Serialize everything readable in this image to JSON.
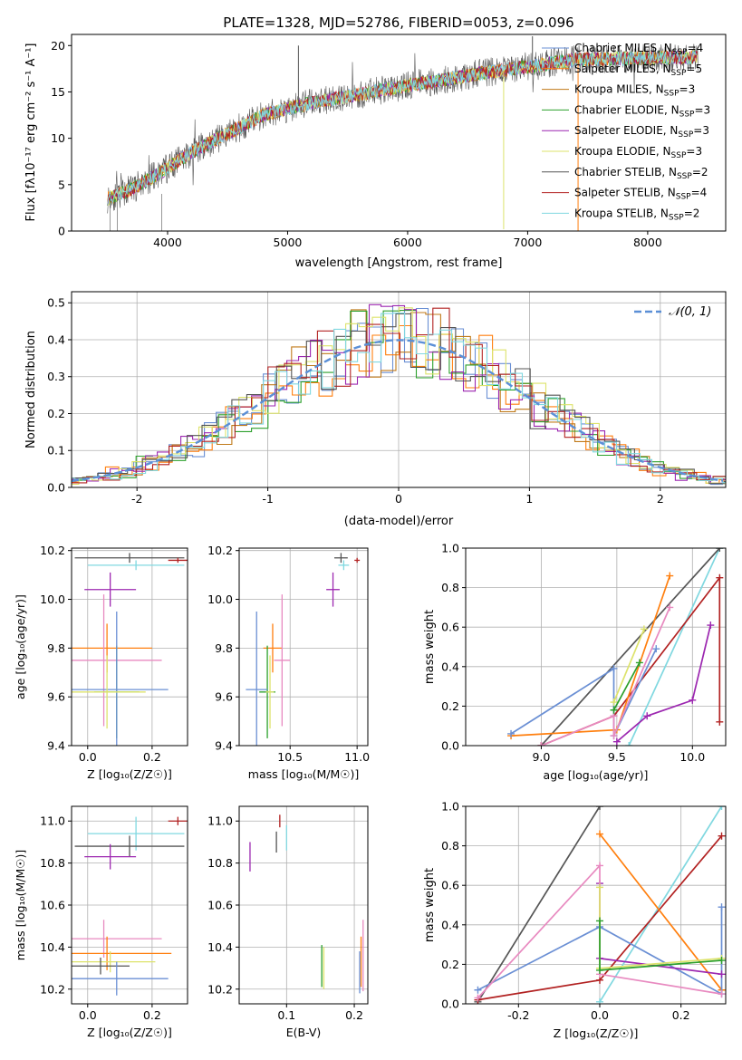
{
  "figure_title": "PLATE=1328, MJD=52786, FIBERID=0053, z=0.096",
  "colors": {
    "Chabrier MILES": "#6a8fd4",
    "Salpeter MILES": "#ff7f0e",
    "Kroupa MILES": "#c07a1a",
    "Chabrier ELODIE": "#2ca02c",
    "Salpeter ELODIE": "#9c27b0",
    "Kroupa ELODIE": "#dde36b",
    "Chabrier STELIB": "#555555",
    "Salpeter STELIB": "#b22222",
    "Kroupa STELIB": "#80d8e0",
    "normal": "#5b8fd6",
    "pink": "#e88ac0",
    "lime": "#b8e04a"
  },
  "chart_data": [
    {
      "id": "spectrum",
      "type": "line",
      "title": "PLATE=1328, MJD=52786, FIBERID=0053, z=0.096",
      "xlabel": "wavelength [Angstrom, rest frame]",
      "ylabel": "Flux [f_λ 10^-17 erg cm^-2 s^-1 A^-1]",
      "xlim": [
        3200,
        8650
      ],
      "ylim": [
        0,
        21.2
      ],
      "xticks": [
        4000,
        5000,
        6000,
        7000,
        8000
      ],
      "yticks": [
        0,
        5,
        10,
        15,
        20
      ],
      "legend": "upper right",
      "legend_entries": [
        "Chabrier MILES, N_SSP=4",
        "Salpeter MILES, N_SSP=5",
        "Kroupa MILES, N_SSP=3",
        "Chabrier ELODIE, N_SSP=3",
        "Salpeter ELODIE, N_SSP=3",
        "Kroupa ELODIE, N_SSP=3",
        "Chabrier STELIB, N_SSP=2",
        "Salpeter STELIB, N_SSP=4",
        "Kroupa STELIB, N_SSP=2"
      ],
      "continuum": [
        [
          3500,
          3.5
        ],
        [
          3700,
          4.5
        ],
        [
          3900,
          6.0
        ],
        [
          4000,
          6.8
        ],
        [
          4200,
          8.5
        ],
        [
          4500,
          10.5
        ],
        [
          4800,
          12.5
        ],
        [
          5000,
          13.2
        ],
        [
          5200,
          13.8
        ],
        [
          5500,
          14.5
        ],
        [
          5800,
          15.2
        ],
        [
          6000,
          15.7
        ],
        [
          6300,
          16.3
        ],
        [
          6600,
          17.0
        ],
        [
          7000,
          17.7
        ],
        [
          7400,
          18.5
        ],
        [
          7800,
          18.6
        ],
        [
          8200,
          18.7
        ],
        [
          8400,
          18.8
        ]
      ],
      "spikes": [
        {
          "x": 5090,
          "y": 20.0,
          "series": "Chabrier STELIB"
        },
        {
          "x": 7040,
          "y": 21.0,
          "series": "Chabrier STELIB"
        },
        {
          "x": 6800,
          "y": 0.2,
          "series": "Kroupa ELODIE"
        },
        {
          "x": 7420,
          "y": 0.0,
          "series": "Salpeter MILES"
        }
      ]
    },
    {
      "id": "residuals",
      "type": "line",
      "xlabel": "(data-model)/error",
      "ylabel": "Normed distribution",
      "xlim": [
        -2.5,
        2.5
      ],
      "ylim": [
        0,
        0.53
      ],
      "xticks": [
        -2,
        -1,
        0,
        1,
        2
      ],
      "yticks": [
        0.0,
        0.1,
        0.2,
        0.3,
        0.4,
        0.5
      ],
      "legend_entries": [
        "𝒩(0, 1)"
      ],
      "legend": "upper right"
    },
    {
      "id": "age_vs_Z",
      "type": "scatter",
      "xlabel": "Z [log10(Z/Z☉)]",
      "ylabel": "age [log10(age/yr)]",
      "xlim": [
        -0.05,
        0.31
      ],
      "ylim": [
        9.4,
        10.21
      ],
      "xticks": [
        0.0,
        0.2
      ],
      "yticks": [
        9.4,
        9.6,
        9.8,
        10.0,
        10.2
      ],
      "points": [
        {
          "series": "Chabrier STELIB",
          "x": 0.13,
          "xerr": 0.17,
          "y": 10.17,
          "yerr": 0.02
        },
        {
          "series": "Salpeter STELIB",
          "x": 0.28,
          "xerr": 0.03,
          "y": 10.16,
          "yerr": 0.01
        },
        {
          "series": "Kroupa STELIB",
          "x": 0.15,
          "xerr": 0.15,
          "y": 10.14,
          "yerr": 0.02
        },
        {
          "series": "Salpeter ELODIE",
          "x": 0.07,
          "xerr": 0.08,
          "y": 10.04,
          "yerr": 0.07
        },
        {
          "series": "Salpeter MILES",
          "x": 0.06,
          "xerr": 0.14,
          "y": 9.8,
          "yerr": 0.1
        },
        {
          "series": "pink",
          "x": 0.05,
          "xerr": 0.18,
          "y": 9.75,
          "yerr": 0.27
        },
        {
          "series": "Chabrier ELODIE",
          "x": 0.09,
          "xerr": 0.07,
          "y": 9.62,
          "yerr": 0.19
        },
        {
          "series": "Chabrier MILES",
          "x": 0.09,
          "xerr": 0.16,
          "y": 9.63,
          "yerr": 0.32
        },
        {
          "series": "Kroupa ELODIE",
          "x": 0.06,
          "xerr": 0.12,
          "y": 9.62,
          "yerr": 0.15
        }
      ]
    },
    {
      "id": "age_vs_mass",
      "type": "scatter",
      "xlabel": "mass [log10(M/M☉)]",
      "xlim": [
        10.12,
        11.08
      ],
      "ylim": [
        9.4,
        10.21
      ],
      "xticks": [
        10.5,
        11.0
      ],
      "yticks": [
        9.4,
        9.6,
        9.8,
        10.0,
        10.2
      ],
      "points": [
        {
          "series": "Chabrier STELIB",
          "x": 10.88,
          "xerr": 0.05,
          "y": 10.17,
          "yerr": 0.02
        },
        {
          "series": "Salpeter STELIB",
          "x": 11.0,
          "xerr": 0.02,
          "y": 10.16,
          "yerr": 0.01
        },
        {
          "series": "Kroupa STELIB",
          "x": 10.9,
          "xerr": 0.04,
          "y": 10.14,
          "yerr": 0.02
        },
        {
          "series": "Salpeter ELODIE",
          "x": 10.82,
          "xerr": 0.05,
          "y": 10.04,
          "yerr": 0.07
        },
        {
          "series": "Salpeter MILES",
          "x": 10.37,
          "xerr": 0.07,
          "y": 9.8,
          "yerr": 0.1
        },
        {
          "series": "pink",
          "x": 10.44,
          "xerr": 0.06,
          "y": 9.75,
          "yerr": 0.27
        },
        {
          "series": "Chabrier ELODIE",
          "x": 10.33,
          "xerr": 0.06,
          "y": 9.62,
          "yerr": 0.19
        },
        {
          "series": "Chabrier MILES",
          "x": 10.25,
          "xerr": 0.08,
          "y": 9.63,
          "yerr": 0.32
        },
        {
          "series": "Kroupa ELODIE",
          "x": 10.35,
          "xerr": 0.03,
          "y": 9.62,
          "yerr": 0.15
        }
      ]
    },
    {
      "id": "mass_weight_vs_age",
      "type": "line",
      "xlabel": "age [log10(age/yr)]",
      "ylabel": "mass weight",
      "xlim": [
        8.5,
        10.22
      ],
      "ylim": [
        0,
        1.0
      ],
      "xticks": [
        9.0,
        9.5,
        10.0
      ],
      "yticks": [
        0.0,
        0.2,
        0.4,
        0.6,
        0.8,
        1.0
      ],
      "series": [
        {
          "name": "Kroupa STELIB",
          "points": [
            [
              9.58,
              0.0
            ],
            [
              10.18,
              1.0
            ]
          ]
        },
        {
          "name": "Chabrier STELIB",
          "points": [
            [
              9.0,
              0.0
            ],
            [
              10.18,
              1.0
            ]
          ]
        },
        {
          "name": "Salpeter STELIB",
          "points": [
            [
              9.0,
              0.0
            ],
            [
              9.48,
              0.15
            ],
            [
              10.18,
              0.85
            ],
            [
              10.18,
              0.12
            ]
          ]
        },
        {
          "name": "Salpeter MILES",
          "points": [
            [
              8.8,
              0.05
            ],
            [
              9.5,
              0.08
            ],
            [
              9.85,
              0.86
            ]
          ]
        },
        {
          "name": "Chabrier MILES",
          "points": [
            [
              8.8,
              0.06
            ],
            [
              9.48,
              0.39
            ],
            [
              9.48,
              0.05
            ],
            [
              9.76,
              0.49
            ]
          ]
        },
        {
          "name": "Salpeter ELODIE",
          "points": [
            [
              9.5,
              0.02
            ],
            [
              9.7,
              0.15
            ],
            [
              10.0,
              0.23
            ],
            [
              10.12,
              0.61
            ]
          ]
        },
        {
          "name": "pink",
          "points": [
            [
              9.0,
              0.0
            ],
            [
              9.48,
              0.15
            ],
            [
              9.48,
              0.05
            ],
            [
              9.85,
              0.7
            ]
          ]
        },
        {
          "name": "Kroupa ELODIE",
          "points": [
            [
              9.48,
              0.22
            ],
            [
              9.68,
              0.59
            ]
          ]
        },
        {
          "name": "Chabrier ELODIE",
          "points": [
            [
              9.48,
              0.18
            ],
            [
              9.65,
              0.42
            ]
          ]
        }
      ]
    },
    {
      "id": "mass_vs_Z",
      "type": "scatter",
      "xlabel": "Z [log10(Z/Z☉)]",
      "ylabel": "mass [log10(M/M☉)]",
      "xlim": [
        -0.05,
        0.31
      ],
      "ylim": [
        10.13,
        11.07
      ],
      "xticks": [
        0.0,
        0.2
      ],
      "yticks": [
        10.2,
        10.4,
        10.6,
        10.8,
        11.0
      ],
      "points": [
        {
          "series": "Salpeter STELIB",
          "x": 0.28,
          "xerr": 0.03,
          "y": 11.0,
          "yerr": 0.02
        },
        {
          "series": "Kroupa STELIB",
          "x": 0.15,
          "xerr": 0.15,
          "y": 10.94,
          "yerr": 0.08
        },
        {
          "series": "Chabrier STELIB",
          "x": 0.13,
          "xerr": 0.17,
          "y": 10.88,
          "yerr": 0.05
        },
        {
          "series": "Salpeter ELODIE",
          "x": 0.07,
          "xerr": 0.08,
          "y": 10.83,
          "yerr": 0.06
        },
        {
          "series": "pink",
          "x": 0.05,
          "xerr": 0.18,
          "y": 10.44,
          "yerr": 0.09
        },
        {
          "series": "Salpeter MILES",
          "x": 0.06,
          "xerr": 0.2,
          "y": 10.37,
          "yerr": 0.08
        },
        {
          "series": "Kroupa ELODIE",
          "x": 0.07,
          "xerr": 0.14,
          "y": 10.33,
          "yerr": 0.05
        },
        {
          "series": "Chabrier STELIB",
          "x": 0.04,
          "xerr": 0.09,
          "y": 10.31,
          "yerr": 0.04
        },
        {
          "series": "Chabrier MILES",
          "x": 0.09,
          "xerr": 0.16,
          "y": 10.25,
          "yerr": 0.08
        }
      ]
    },
    {
      "id": "mass_vs_EBV",
      "type": "scatter",
      "xlabel": "E(B-V)",
      "xlim": [
        0.03,
        0.22
      ],
      "ylim": [
        10.13,
        11.07
      ],
      "xticks": [
        0.1,
        0.2
      ],
      "yticks": [
        10.2,
        10.4,
        10.6,
        10.8,
        11.0
      ],
      "points": [
        {
          "series": "Salpeter STELIB",
          "x": 0.09,
          "y": 11.0,
          "yerr": 0.03
        },
        {
          "series": "Kroupa STELIB",
          "x": 0.1,
          "y": 10.92,
          "yerr": 0.06
        },
        {
          "series": "Chabrier STELIB",
          "x": 0.085,
          "y": 10.9,
          "yerr": 0.05
        },
        {
          "series": "Salpeter ELODIE",
          "x": 0.046,
          "y": 10.83,
          "yerr": 0.07
        },
        {
          "series": "Chabrier ELODIE",
          "x": 0.152,
          "y": 10.31,
          "yerr": 0.1
        },
        {
          "series": "Kroupa ELODIE",
          "x": 0.155,
          "y": 10.3,
          "yerr": 0.1
        },
        {
          "series": "Salpeter MILES",
          "x": 0.21,
          "y": 10.33,
          "yerr": 0.12
        },
        {
          "series": "pink",
          "x": 0.213,
          "y": 10.36,
          "yerr": 0.17
        },
        {
          "series": "Chabrier MILES",
          "x": 0.208,
          "y": 10.28,
          "yerr": 0.1
        }
      ]
    },
    {
      "id": "mass_weight_vs_Z",
      "type": "line",
      "xlabel": "Z [log10(Z/Z☉)]",
      "ylabel": "mass weight",
      "xlim": [
        -0.33,
        0.31
      ],
      "ylim": [
        0,
        1.0
      ],
      "xticks": [
        -0.2,
        0.0,
        0.2
      ],
      "yticks": [
        0.0,
        0.2,
        0.4,
        0.6,
        0.8,
        1.0
      ],
      "series": [
        {
          "name": "Chabrier STELIB",
          "points": [
            [
              -0.3,
              0.01
            ],
            [
              0.0,
              1.0
            ]
          ]
        },
        {
          "name": "Kroupa STELIB",
          "points": [
            [
              0.0,
              0.01
            ],
            [
              0.3,
              1.0
            ]
          ]
        },
        {
          "name": "Salpeter STELIB",
          "points": [
            [
              -0.3,
              0.02
            ],
            [
              0.0,
              0.12
            ],
            [
              0.3,
              0.85
            ]
          ]
        },
        {
          "name": "Salpeter MILES",
          "points": [
            [
              0.0,
              0.86
            ],
            [
              0.3,
              0.07
            ]
          ]
        },
        {
          "name": "Chabrier MILES",
          "points": [
            [
              -0.3,
              0.07
            ],
            [
              0.0,
              0.39
            ],
            [
              0.3,
              0.05
            ],
            [
              0.3,
              0.49
            ]
          ]
        },
        {
          "name": "Salpeter ELODIE",
          "points": [
            [
              0.0,
              0.61
            ],
            [
              0.0,
              0.23
            ],
            [
              0.3,
              0.15
            ]
          ]
        },
        {
          "name": "pink",
          "points": [
            [
              -0.3,
              0.03
            ],
            [
              0.0,
              0.7
            ],
            [
              0.0,
              0.15
            ],
            [
              0.3,
              0.05
            ]
          ]
        },
        {
          "name": "Kroupa ELODIE",
          "points": [
            [
              0.0,
              0.59
            ],
            [
              0.0,
              0.18
            ],
            [
              0.3,
              0.23
            ]
          ]
        },
        {
          "name": "Chabrier ELODIE",
          "points": [
            [
              0.0,
              0.42
            ],
            [
              0.0,
              0.17
            ],
            [
              0.3,
              0.22
            ]
          ]
        }
      ]
    }
  ]
}
